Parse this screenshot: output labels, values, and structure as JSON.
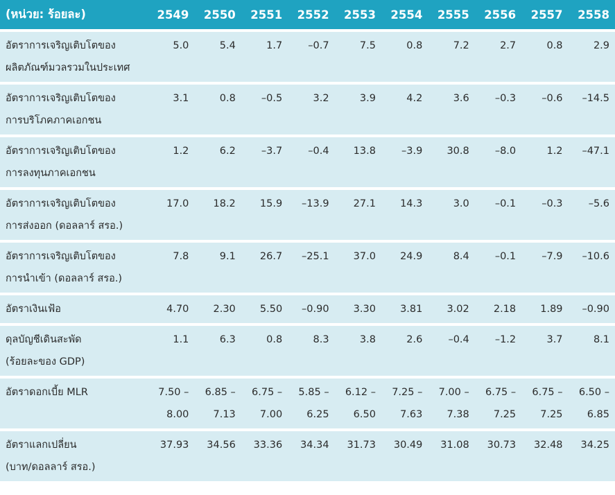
{
  "table": {
    "unit_header": "(หน่วย: ร้อยละ)",
    "years": [
      "2549",
      "2550",
      "2551",
      "2552",
      "2553",
      "2554",
      "2555",
      "2556",
      "2557",
      "2558"
    ],
    "rows": [
      {
        "label": [
          "อัตราการเจริญเติบโตของ",
          "ผลิตภัณฑ์มวลรวมในประเทศ"
        ],
        "values": [
          [
            "5.0"
          ],
          [
            "5.4"
          ],
          [
            "1.7"
          ],
          [
            "–0.7"
          ],
          [
            "7.5"
          ],
          [
            "0.8"
          ],
          [
            "7.2"
          ],
          [
            "2.7"
          ],
          [
            "0.8"
          ],
          [
            "2.9"
          ]
        ]
      },
      {
        "label": [
          "อัตราการเจริญเติบโตของ",
          "การบริโภคภาคเอกชน"
        ],
        "values": [
          [
            "3.1"
          ],
          [
            "0.8"
          ],
          [
            "–0.5"
          ],
          [
            "3.2"
          ],
          [
            "3.9"
          ],
          [
            "4.2"
          ],
          [
            "3.6"
          ],
          [
            "–0.3"
          ],
          [
            "–0.6"
          ],
          [
            "–14.5"
          ]
        ]
      },
      {
        "label": [
          "อัตราการเจริญเติบโตของ",
          "การลงทุนภาคเอกชน"
        ],
        "values": [
          [
            "1.2"
          ],
          [
            "6.2"
          ],
          [
            "–3.7"
          ],
          [
            "–0.4"
          ],
          [
            "13.8"
          ],
          [
            "–3.9"
          ],
          [
            "30.8"
          ],
          [
            "–8.0"
          ],
          [
            "1.2"
          ],
          [
            "–47.1"
          ]
        ]
      },
      {
        "label": [
          "อัตราการเจริญเติบโตของ",
          "การส่งออก (ดอลลาร์ สรอ.)"
        ],
        "values": [
          [
            "17.0"
          ],
          [
            "18.2"
          ],
          [
            "15.9"
          ],
          [
            "–13.9"
          ],
          [
            "27.1"
          ],
          [
            "14.3"
          ],
          [
            "3.0"
          ],
          [
            "–0.1"
          ],
          [
            "–0.3"
          ],
          [
            "–5.6"
          ]
        ]
      },
      {
        "label": [
          "อัตราการเจริญเติบโตของ",
          "การนำเข้า (ดอลลาร์ สรอ.)"
        ],
        "values": [
          [
            "7.8"
          ],
          [
            "9.1"
          ],
          [
            "26.7"
          ],
          [
            "–25.1"
          ],
          [
            "37.0"
          ],
          [
            "24.9"
          ],
          [
            "8.4"
          ],
          [
            "–0.1"
          ],
          [
            "–7.9"
          ],
          [
            "–10.6"
          ]
        ]
      },
      {
        "label": [
          "อัตราเงินเฟ้อ"
        ],
        "values": [
          [
            "4.70"
          ],
          [
            "2.30"
          ],
          [
            "5.50"
          ],
          [
            "–0.90"
          ],
          [
            "3.30"
          ],
          [
            "3.81"
          ],
          [
            "3.02"
          ],
          [
            "2.18"
          ],
          [
            "1.89"
          ],
          [
            "–0.90"
          ]
        ]
      },
      {
        "label": [
          "ดุลบัญชีเดินสะพัด",
          "(ร้อยละของ GDP)"
        ],
        "values": [
          [
            "1.1"
          ],
          [
            "6.3"
          ],
          [
            "0.8"
          ],
          [
            "8.3"
          ],
          [
            "3.8"
          ],
          [
            "2.6"
          ],
          [
            "–0.4"
          ],
          [
            "–1.2"
          ],
          [
            "3.7"
          ],
          [
            "8.1"
          ]
        ]
      },
      {
        "label": [
          "อัตราดอกเบี้ย MLR"
        ],
        "values": [
          [
            "7.50 –",
            "8.00"
          ],
          [
            "6.85 –",
            "7.13"
          ],
          [
            "6.75 –",
            "7.00"
          ],
          [
            "5.85 –",
            "6.25"
          ],
          [
            "6.12 –",
            "6.50"
          ],
          [
            "7.25 –",
            "7.63"
          ],
          [
            "7.00 –",
            "7.38"
          ],
          [
            "6.75 –",
            "7.25"
          ],
          [
            "6.75 –",
            "7.25"
          ],
          [
            "6.50 –",
            "6.85"
          ]
        ]
      },
      {
        "label": [
          "อัตราแลกเปลี่ยน",
          "(บาท/ดอลลาร์ สรอ.)"
        ],
        "values": [
          [
            "37.93"
          ],
          [
            "34.56"
          ],
          [
            "33.36"
          ],
          [
            "34.34"
          ],
          [
            "31.73"
          ],
          [
            "30.49"
          ],
          [
            "31.08"
          ],
          [
            "30.73"
          ],
          [
            "32.48"
          ],
          [
            "34.25"
          ]
        ]
      }
    ]
  }
}
